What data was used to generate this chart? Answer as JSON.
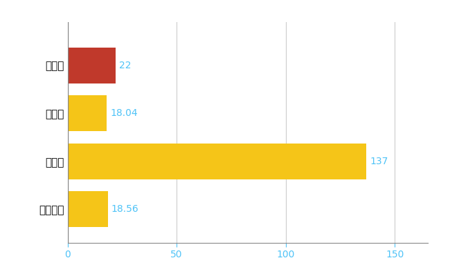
{
  "categories": [
    "日向市",
    "県平均",
    "県最大",
    "全国平均"
  ],
  "values": [
    22,
    18.04,
    137,
    18.56
  ],
  "bar_colors": [
    "#c0392b",
    "#f5c518",
    "#f5c518",
    "#f5c518"
  ],
  "label_color": "#4fc3f7",
  "tick_color": "#4fc3f7",
  "labels": [
    "22",
    "18.04",
    "137",
    "18.56"
  ],
  "xlim": [
    0,
    165
  ],
  "xticks": [
    0,
    50,
    100,
    150
  ],
  "grid_color": "#cccccc",
  "background_color": "#ffffff",
  "bar_height": 0.75,
  "label_fontsize": 10,
  "ytick_fontsize": 11,
  "xtick_fontsize": 10
}
